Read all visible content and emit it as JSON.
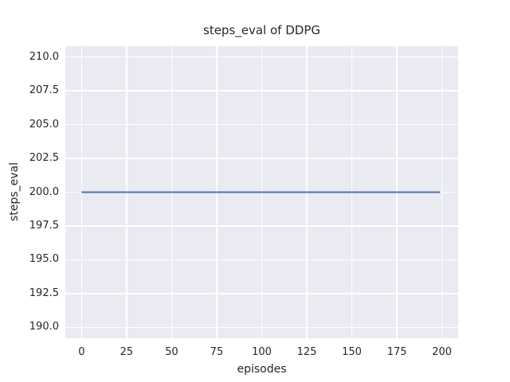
{
  "chart_data": {
    "type": "line",
    "title": "steps_eval of DDPG",
    "xlabel": "episodes",
    "ylabel": "steps_eval",
    "xlim": [
      -9,
      209
    ],
    "ylim": [
      189.2,
      210.8
    ],
    "xticks": {
      "values": [
        0,
        25,
        50,
        75,
        100,
        125,
        150,
        175,
        200
      ],
      "labels": [
        "0",
        "25",
        "50",
        "75",
        "100",
        "125",
        "150",
        "175",
        "200"
      ]
    },
    "yticks": {
      "values": [
        190.0,
        192.5,
        195.0,
        197.5,
        200.0,
        202.5,
        205.0,
        207.5,
        210.0
      ],
      "labels": [
        "190.0",
        "192.5",
        "195.0",
        "197.5",
        "200.0",
        "202.5",
        "205.0",
        "207.5",
        "210.0"
      ]
    },
    "grid": true,
    "legend": false,
    "style": {
      "plot_background": "#eaeaf2",
      "grid_color": "#ffffff",
      "text_color": "#262626",
      "line_width": 2
    },
    "series": [
      {
        "name": "steps_eval of DDPG",
        "color": "#4c72b0",
        "x": [
          0,
          199
        ],
        "y": [
          200,
          200
        ]
      }
    ]
  }
}
